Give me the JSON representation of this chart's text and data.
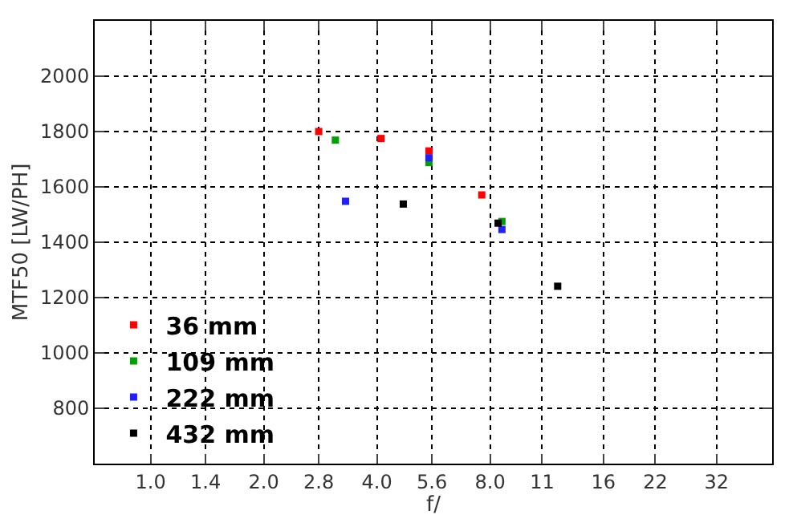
{
  "chart_data": {
    "type": "scatter",
    "xlabel": "f/",
    "ylabel": "MTF50 [LW/PH]",
    "log": "x",
    "marker": "square",
    "grid": true,
    "legend": "bottom left",
    "xlim": [
      0.71,
      45
    ],
    "ylim": [
      600,
      2200
    ],
    "xticks": [
      {
        "value": 1,
        "label": "1.0"
      },
      1.4,
      {
        "value": 2,
        "label": "2.0"
      },
      2.8,
      {
        "value": 4,
        "label": "4.0"
      },
      5.6,
      {
        "value": 8,
        "label": "8.0"
      },
      11,
      16,
      22,
      32
    ],
    "yticks": [
      800,
      1000,
      1200,
      1400,
      1600,
      1800,
      2000
    ],
    "series": [
      {
        "name": "36 mm",
        "color": "#ff0000",
        "x": [
          2.8,
          4.1,
          5.5,
          7.6
        ],
        "values": [
          1800,
          1775,
          1730,
          1571
        ]
      },
      {
        "name": "109 mm",
        "color": "#00a000",
        "x": [
          3.1,
          5.5,
          8.6
        ],
        "values": [
          1769,
          1688,
          1475
        ]
      },
      {
        "name": "222 mm",
        "color": "#2020ff",
        "x": [
          3.3,
          5.5,
          8.6
        ],
        "values": [
          1548,
          1705,
          1446
        ]
      },
      {
        "name": "432 mm",
        "color": "#000000",
        "x": [
          4.7,
          8.4,
          12.1
        ],
        "values": [
          1538,
          1469,
          1241
        ]
      }
    ]
  }
}
